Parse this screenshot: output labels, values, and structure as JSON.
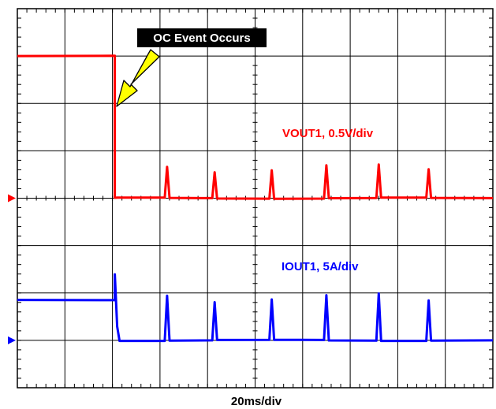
{
  "chart_data": {
    "type": "line",
    "title": "",
    "xlabel": "20ms/div",
    "x_divisions": 10,
    "y_divisions": 8,
    "series": [
      {
        "name": "VOUT1, 0.5V/div",
        "color": "#ff0000",
        "ground_marker_division": 4,
        "x": [
          0,
          2.05,
          2.05,
          2.1,
          3.1,
          3.15,
          3.2,
          4.1,
          4.15,
          4.2,
          5.3,
          5.35,
          5.4,
          6.45,
          6.5,
          6.55,
          7.55,
          7.6,
          7.65,
          8.6,
          8.65,
          8.7,
          10
        ],
        "y": [
          3,
          3,
          0,
          0,
          0,
          0.65,
          0,
          0,
          0.55,
          0,
          0,
          0.6,
          0,
          0,
          0.7,
          0,
          0,
          0.7,
          0,
          0,
          0.6,
          0,
          0
        ]
      },
      {
        "name": "IOUT1, 5A/div",
        "color": "#0000ff",
        "ground_marker_division": 1,
        "x": [
          0,
          2.05,
          2.05,
          2.1,
          2.15,
          3.1,
          3.15,
          3.2,
          4.1,
          4.15,
          4.2,
          5.3,
          5.35,
          5.4,
          6.45,
          6.5,
          6.55,
          7.55,
          7.6,
          7.65,
          8.6,
          8.65,
          8.7,
          10
        ],
        "y": [
          0.85,
          0.85,
          1.4,
          0.3,
          0,
          0,
          0.95,
          0,
          0,
          0.8,
          0,
          0,
          0.85,
          0,
          0,
          0.95,
          0,
          0,
          1.0,
          0,
          0,
          0.85,
          0,
          0
        ]
      }
    ],
    "annotations": [
      {
        "text": "OC Event Occurs",
        "points_to": {
          "x": 2.05,
          "y_division": 6.9
        }
      }
    ]
  }
}
